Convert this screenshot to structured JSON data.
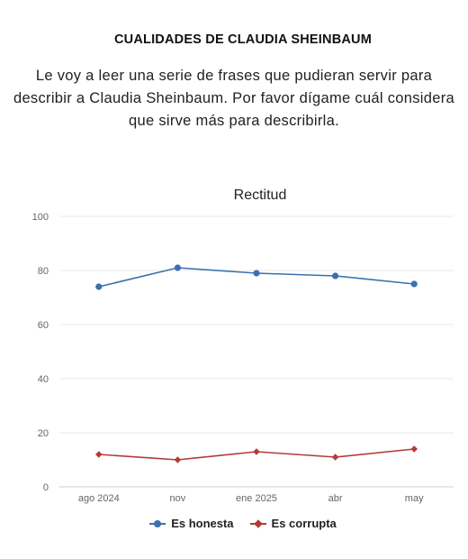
{
  "header": {
    "title": "CUALIDADES DE CLAUDIA SHEINBAUM",
    "question_lines": [
      "Le voy a leer una serie de frases que pudieran servir para",
      "describir a Claudia Sheinbaum. Por favor dígame cuál considera",
      "que sirve más para describirla."
    ]
  },
  "chart_data": {
    "type": "line",
    "title": "Rectitud",
    "categories": [
      "ago 2024",
      "nov",
      "ene 2025",
      "abr",
      "may"
    ],
    "ylim": [
      0,
      100
    ],
    "yticks": [
      0,
      20,
      40,
      60,
      80,
      100
    ],
    "grid": true,
    "legend_position": "bottom",
    "series": [
      {
        "name": "Es honesta",
        "values": [
          74,
          81,
          79,
          78,
          75
        ],
        "color": "#3c70b0",
        "marker": "circle"
      },
      {
        "name": "Es corrupta",
        "values": [
          12,
          10,
          13,
          11,
          14
        ],
        "color": "#b53a3a",
        "marker": "diamond"
      }
    ]
  }
}
